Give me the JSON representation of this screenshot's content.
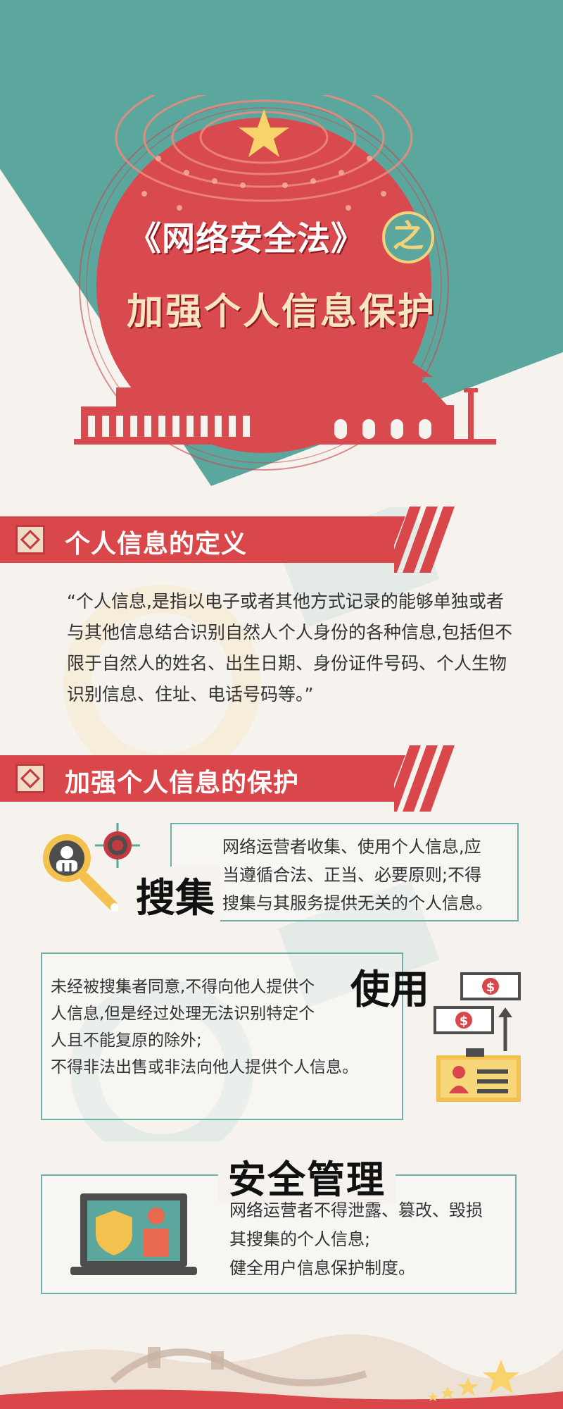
{
  "hero": {
    "title_line1": "《网络安全法》",
    "title_zhi": "之",
    "title_line2": "加强个人信息保护"
  },
  "sections": [
    {
      "heading": "个人信息的定义"
    },
    {
      "heading": "加强个人信息的保护"
    }
  ],
  "definition": {
    "lines": [
      "“个人信息,是指以电子或者其他方式记录的能够单独或者",
      "与其他信息结合识别自然人个人身份的各种信息,包括但不",
      "限于自然人的姓名、出生日期、身份证件号码、个人生物",
      "识别信息、住址、电话号码等。”"
    ]
  },
  "collect": {
    "label": "搜集",
    "lines": [
      "网络运营者收集、使用个人信息,应",
      "当遵循合法、正当、必要原则;不得",
      "搜集与其服务提供无关的个人信息。"
    ]
  },
  "use": {
    "label": "使用",
    "lines": [
      "未经被搜集者同意,不得向他人提供个",
      "人信息,但是经过处理无法识别特定个",
      "人且不能复原的除外;",
      "不得非法出售或非法向他人提供个人信息。"
    ],
    "money_symbol": "$"
  },
  "management": {
    "label": "安全管理",
    "lines": [
      "网络运营者不得泄露、篡改、毁损",
      "其搜集的个人信息;",
      "健全用户信息保护制度。"
    ]
  },
  "colors": {
    "teal": "#5ba79e",
    "red": "#d9474a",
    "dark_red": "#c23a3e",
    "cream": "#f6f3ee",
    "gold": "#f2c14e"
  },
  "icons": [
    "magnifier-person-icon",
    "target-icon",
    "money-card-icon",
    "laptop-shield-icon",
    "stars-icon"
  ]
}
